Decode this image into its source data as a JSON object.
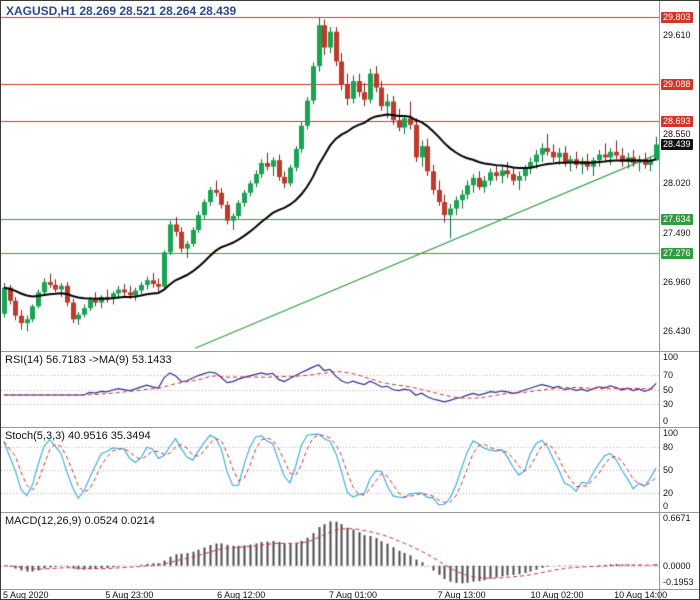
{
  "colors": {
    "background": "#ffffff",
    "title": "#2b4a8b",
    "resistance": "#d6342a",
    "support": "#2f9e41",
    "current_badge": "#111111",
    "trendline": "#2f9e41",
    "candle_up": "#17a554",
    "candle_up_border": "#0b6b33",
    "candle_down": "#c0392b",
    "candle_down_border": "#7e2015",
    "ma": "#000000",
    "rsi_line": "#2a2f8f",
    "stoch_line": "#41aee3",
    "macd_hist": "#4a4a4a",
    "signal_line": "#d22d2d",
    "panel_dots": "#b5b5b5"
  },
  "chart_data": {
    "type": "candlestick",
    "symbol": "XAGUSD",
    "timeframe": "H1",
    "title": "XAGUSD,H1 28.269 28.521 28.264 28.439",
    "last_ohlc": {
      "open": 28.269,
      "high": 28.521,
      "low": 28.264,
      "close": 28.439
    },
    "main": {
      "ylim": [
        26.22,
        29.98
      ],
      "ma_period": 24,
      "trendline": {
        "x1": 0.295,
        "p1": 26.25,
        "x2": 1.0,
        "p2": 28.34
      },
      "y_ticks": [
        {
          "text": "29.610",
          "value": 29.61
        },
        {
          "text": "28.550",
          "value": 28.55
        },
        {
          "text": "28.020",
          "value": 28.02
        },
        {
          "text": "27.490",
          "value": 27.49
        },
        {
          "text": "26.960",
          "value": 26.96
        },
        {
          "text": "26.430",
          "value": 26.43
        }
      ],
      "levels": [
        {
          "text": "29.803",
          "price": 29.803,
          "role": "resistance"
        },
        {
          "text": "29.088",
          "price": 29.088,
          "role": "resistance"
        },
        {
          "text": "28.693",
          "price": 28.693,
          "role": "resistance"
        },
        {
          "text": "28.439",
          "price": 28.439,
          "role": "current"
        },
        {
          "text": "27.634",
          "price": 27.634,
          "role": "support"
        },
        {
          "text": "27.276",
          "price": 27.276,
          "role": "support"
        }
      ],
      "candles": [
        [
          26.62,
          26.95,
          26.58,
          26.9
        ],
        [
          26.9,
          26.93,
          26.72,
          26.76
        ],
        [
          26.76,
          26.8,
          26.55,
          26.6
        ],
        [
          26.6,
          26.66,
          26.45,
          26.52
        ],
        [
          26.52,
          26.6,
          26.43,
          26.56
        ],
        [
          26.56,
          26.72,
          26.53,
          26.7
        ],
        [
          26.7,
          26.88,
          26.68,
          26.85
        ],
        [
          26.85,
          27.0,
          26.82,
          26.96
        ],
        [
          26.96,
          27.05,
          26.9,
          26.93
        ],
        [
          26.93,
          26.99,
          26.85,
          26.88
        ],
        [
          26.88,
          26.95,
          26.8,
          26.92
        ],
        [
          26.92,
          26.96,
          26.7,
          26.74
        ],
        [
          26.74,
          26.78,
          26.52,
          26.56
        ],
        [
          26.56,
          26.64,
          26.5,
          26.61
        ],
        [
          26.61,
          26.72,
          26.58,
          26.68
        ],
        [
          26.68,
          26.8,
          26.65,
          26.77
        ],
        [
          26.77,
          26.85,
          26.7,
          26.74
        ],
        [
          26.74,
          26.82,
          26.68,
          26.8
        ],
        [
          26.8,
          26.88,
          26.74,
          26.78
        ],
        [
          26.78,
          26.86,
          26.72,
          26.84
        ],
        [
          26.84,
          26.92,
          26.78,
          26.88
        ],
        [
          26.88,
          26.94,
          26.8,
          26.85
        ],
        [
          26.85,
          26.92,
          26.78,
          26.82
        ],
        [
          26.82,
          26.9,
          26.76,
          26.87
        ],
        [
          26.87,
          26.96,
          26.83,
          26.93
        ],
        [
          26.93,
          27.02,
          26.88,
          26.98
        ],
        [
          26.98,
          27.06,
          26.9,
          26.94
        ],
        [
          26.94,
          27.0,
          26.86,
          26.91
        ],
        [
          26.91,
          27.3,
          26.89,
          27.28
        ],
        [
          27.28,
          27.62,
          27.25,
          27.58
        ],
        [
          27.58,
          27.66,
          27.45,
          27.5
        ],
        [
          27.5,
          27.55,
          27.28,
          27.32
        ],
        [
          27.32,
          27.4,
          27.22,
          27.37
        ],
        [
          27.37,
          27.55,
          27.34,
          27.52
        ],
        [
          27.52,
          27.72,
          27.49,
          27.68
        ],
        [
          27.68,
          27.85,
          27.64,
          27.82
        ],
        [
          27.82,
          27.98,
          27.78,
          27.95
        ],
        [
          27.95,
          28.05,
          27.88,
          27.92
        ],
        [
          27.92,
          27.97,
          27.75,
          27.79
        ],
        [
          27.79,
          27.83,
          27.58,
          27.62
        ],
        [
          27.62,
          27.7,
          27.52,
          27.67
        ],
        [
          27.67,
          27.84,
          27.64,
          27.81
        ],
        [
          27.81,
          27.95,
          27.77,
          27.92
        ],
        [
          27.92,
          28.05,
          27.88,
          28.02
        ],
        [
          28.02,
          28.16,
          27.98,
          28.12
        ],
        [
          28.12,
          28.28,
          28.08,
          28.24
        ],
        [
          28.24,
          28.35,
          28.16,
          28.2
        ],
        [
          28.2,
          28.3,
          28.1,
          28.27
        ],
        [
          28.27,
          28.33,
          28.05,
          28.09
        ],
        [
          28.09,
          28.15,
          27.97,
          28.02
        ],
        [
          28.02,
          28.22,
          27.99,
          28.19
        ],
        [
          28.19,
          28.42,
          28.15,
          28.39
        ],
        [
          28.39,
          28.68,
          28.35,
          28.64
        ],
        [
          28.64,
          28.95,
          28.6,
          28.91
        ],
        [
          28.91,
          29.32,
          28.87,
          29.28
        ],
        [
          29.28,
          29.8,
          29.22,
          29.72
        ],
        [
          29.72,
          29.78,
          29.4,
          29.48
        ],
        [
          29.48,
          29.7,
          29.42,
          29.65
        ],
        [
          29.65,
          29.7,
          29.28,
          29.33
        ],
        [
          29.33,
          29.42,
          29.02,
          29.08
        ],
        [
          29.08,
          29.2,
          28.86,
          28.93
        ],
        [
          28.93,
          29.18,
          28.88,
          29.12
        ],
        [
          29.12,
          29.2,
          28.95,
          29.0
        ],
        [
          29.0,
          29.1,
          28.85,
          28.92
        ],
        [
          28.92,
          29.25,
          28.88,
          29.2
        ],
        [
          29.2,
          29.28,
          29.0,
          29.05
        ],
        [
          29.05,
          29.12,
          28.8,
          28.85
        ],
        [
          28.85,
          28.98,
          28.72,
          28.9
        ],
        [
          28.9,
          28.96,
          28.65,
          28.7
        ],
        [
          28.7,
          28.82,
          28.58,
          28.62
        ],
        [
          28.62,
          28.75,
          28.55,
          28.72
        ],
        [
          28.72,
          28.9,
          28.6,
          28.65
        ],
        [
          28.65,
          28.72,
          28.25,
          28.3
        ],
        [
          28.3,
          28.48,
          28.2,
          28.42
        ],
        [
          28.42,
          28.5,
          28.1,
          28.15
        ],
        [
          28.15,
          28.22,
          27.9,
          27.95
        ],
        [
          27.95,
          28.05,
          27.78,
          27.82
        ],
        [
          27.82,
          27.9,
          27.6,
          27.68
        ],
        [
          27.68,
          27.8,
          27.43,
          27.75
        ],
        [
          27.75,
          27.88,
          27.68,
          27.84
        ],
        [
          27.84,
          27.95,
          27.75,
          27.9
        ],
        [
          27.9,
          28.05,
          27.85,
          28.0
        ],
        [
          28.0,
          28.12,
          27.92,
          28.08
        ],
        [
          28.08,
          28.15,
          27.95,
          27.98
        ],
        [
          27.98,
          28.1,
          27.92,
          28.05
        ],
        [
          28.05,
          28.18,
          28.0,
          28.14
        ],
        [
          28.14,
          28.22,
          28.05,
          28.1
        ],
        [
          28.1,
          28.2,
          28.02,
          28.16
        ],
        [
          28.16,
          28.25,
          28.08,
          28.12
        ],
        [
          28.12,
          28.2,
          28.0,
          28.05
        ],
        [
          28.05,
          28.15,
          27.95,
          28.1
        ],
        [
          28.1,
          28.22,
          28.05,
          28.18
        ],
        [
          28.18,
          28.3,
          28.12,
          28.25
        ],
        [
          28.25,
          28.38,
          28.18,
          28.33
        ],
        [
          28.33,
          28.45,
          28.25,
          28.4
        ],
        [
          28.4,
          28.55,
          28.32,
          28.36
        ],
        [
          28.36,
          28.44,
          28.25,
          28.3
        ],
        [
          28.3,
          28.4,
          28.22,
          28.35
        ],
        [
          28.35,
          28.42,
          28.2,
          28.24
        ],
        [
          28.24,
          28.32,
          28.15,
          28.28
        ],
        [
          28.28,
          28.36,
          28.18,
          28.22
        ],
        [
          28.22,
          28.3,
          28.12,
          28.26
        ],
        [
          28.26,
          28.34,
          28.16,
          28.2
        ],
        [
          28.2,
          28.3,
          28.1,
          28.27
        ],
        [
          28.27,
          28.38,
          28.2,
          28.33
        ],
        [
          28.33,
          28.45,
          28.25,
          28.3
        ],
        [
          28.3,
          28.4,
          28.22,
          28.36
        ],
        [
          28.36,
          28.48,
          28.28,
          28.32
        ],
        [
          28.32,
          28.4,
          28.2,
          28.25
        ],
        [
          28.25,
          28.35,
          28.18,
          28.3
        ],
        [
          28.3,
          28.38,
          28.2,
          28.24
        ],
        [
          28.24,
          28.32,
          28.15,
          28.28
        ],
        [
          28.28,
          28.35,
          28.18,
          28.22
        ],
        [
          28.22,
          28.3,
          28.15,
          28.27
        ],
        [
          28.269,
          28.521,
          28.264,
          28.439
        ]
      ]
    },
    "x_ticks": [
      {
        "text": "5 Aug 2020",
        "x": 0.03
      },
      {
        "text": "5 Aug 23:00",
        "x": 0.195
      },
      {
        "text": "6 Aug 12:00",
        "x": 0.365
      },
      {
        "text": "7 Aug 01:00",
        "x": 0.535
      },
      {
        "text": "7 Aug 13:00",
        "x": 0.7
      },
      {
        "text": "10 Aug 02:00",
        "x": 0.845
      },
      {
        "text": "10 Aug 14:00",
        "x": 0.972
      }
    ],
    "indicators": [
      {
        "id": "rsi",
        "label": "RSI(14) 56.7183 ->MA(9) 53.1433",
        "display_values": [
          56.7183,
          53.1433
        ],
        "params": {
          "period": 14,
          "ma": 9
        },
        "range": [
          0,
          100
        ],
        "levels": [
          70,
          50,
          30
        ],
        "y_ticks": [
          {
            "text": "100",
            "value": 100
          },
          {
            "text": "70",
            "value": 70
          },
          {
            "text": "50",
            "value": 50
          },
          {
            "text": "30",
            "value": 30
          },
          {
            "text": "0",
            "value": 0
          }
        ]
      },
      {
        "id": "stochastic",
        "label": "Stoch(5,3,3) 40.9516 35.3494",
        "display_values": [
          40.9516,
          35.3494
        ],
        "params": {
          "k": 5,
          "slowing": 3,
          "d": 3
        },
        "range": [
          0,
          100
        ],
        "levels": [
          80,
          50,
          20
        ],
        "y_ticks": [
          {
            "text": "100",
            "value": 100
          },
          {
            "text": "80",
            "value": 80
          },
          {
            "text": "50",
            "value": 50
          },
          {
            "text": "20",
            "value": 20
          },
          {
            "text": "0",
            "value": 0
          }
        ]
      },
      {
        "id": "macd",
        "label": "MACD(12,26,9) 0.0524 0.0214",
        "display_values": [
          0.0524,
          0.0214
        ],
        "params": {
          "fast": 12,
          "slow": 26,
          "signal": 9
        },
        "y_ticks": [
          {
            "text": "0.6671",
            "value": 0.6671
          },
          {
            "text": "0.0000",
            "value": 0.0
          },
          {
            "text": "-0.1953",
            "value": -0.1953
          }
        ]
      }
    ]
  }
}
